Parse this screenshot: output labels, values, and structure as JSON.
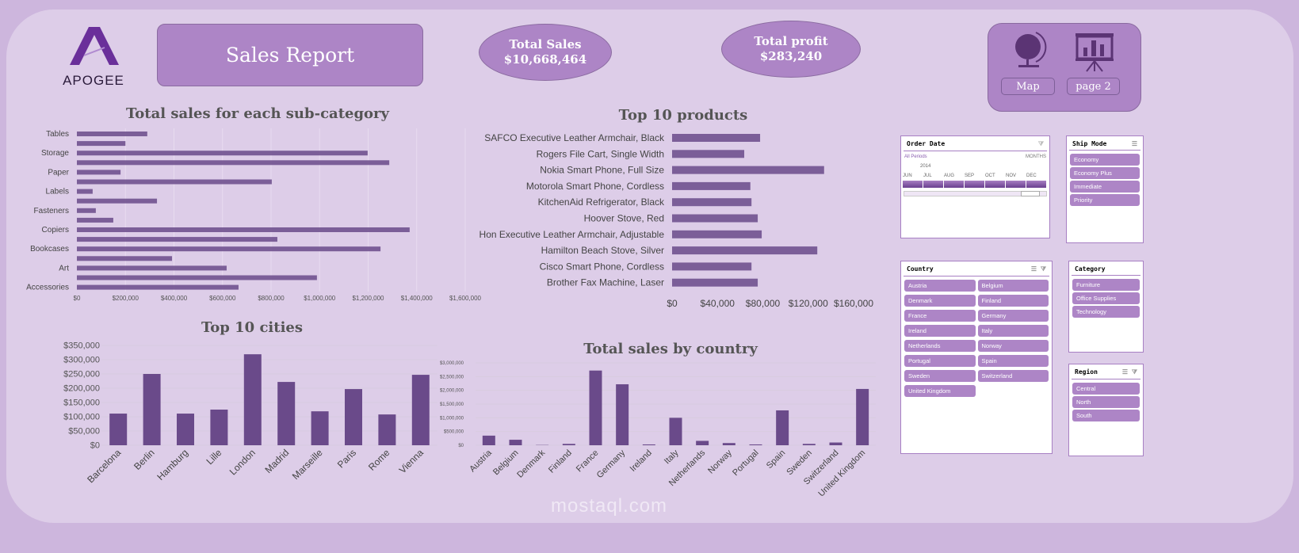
{
  "header": {
    "logo_text": "APOGEE",
    "title": "Sales Report",
    "kpis": [
      {
        "label": "Total Sales",
        "value": "$10,668,464"
      },
      {
        "label": "Total profit",
        "value": "$283,240"
      }
    ],
    "nav": {
      "map_label": "Map",
      "page2_label": "page 2",
      "icons": [
        "globe-icon",
        "presentation-chart-icon"
      ]
    }
  },
  "colors": {
    "bar": "#6a4a8a",
    "slicer": "#ad85c6",
    "panel": "#ddcde8",
    "background": "#cdb6dd"
  },
  "chart_data": [
    {
      "type": "bar",
      "orientation": "horizontal",
      "title": "Total sales for each sub-category",
      "categories": [
        "Tables",
        "",
        "Storage",
        "",
        "Paper",
        "",
        "Labels",
        "",
        "Fasteners",
        "",
        "Copiers",
        "",
        "Bookcases",
        "",
        "Art",
        "",
        "Accessories"
      ],
      "values": [
        290000,
        200000,
        1198000,
        1287000,
        180000,
        803000,
        65000,
        330000,
        78000,
        150000,
        1371000,
        826000,
        1251000,
        392000,
        617000,
        989000,
        666000
      ],
      "xlim": [
        0,
        1600000
      ],
      "ticks": [
        "$0",
        "$200,000",
        "$400,000",
        "$600,000",
        "$800,000",
        "$1,000,000",
        "$1,200,000",
        "$1,400,000",
        "$1,600,000"
      ],
      "grid": true
    },
    {
      "type": "bar",
      "orientation": "horizontal",
      "title": "Top 10 products",
      "categories": [
        "SAFCO Executive Leather Armchair, Black",
        "Rogers File Cart, Single Width",
        "Nokia Smart Phone, Full Size",
        "Motorola Smart Phone, Cordless",
        "KitchenAid Refrigerator, Black",
        "Hoover Stove, Red",
        "Hon Executive Leather Armchair, Adjustable",
        "Hamilton Beach Stove, Silver",
        "Cisco Smart Phone, Cordless",
        "Brother Fax Machine, Laser"
      ],
      "values": [
        77600,
        63600,
        134000,
        69000,
        70000,
        75500,
        79000,
        128000,
        70000,
        75500
      ],
      "xlim": [
        0,
        160000
      ],
      "ticks": [
        "$0",
        "$40,000",
        "$80,000",
        "$120,000",
        "$160,000"
      ],
      "grid": false
    },
    {
      "type": "bar",
      "title": "Top 10 cities",
      "categories": [
        "Barcelona",
        "Berlin",
        "Hamburg",
        "Lille",
        "London",
        "Madrid",
        "Marseille",
        "Paris",
        "Rome",
        "Vienna"
      ],
      "values": [
        111000,
        250000,
        111000,
        125000,
        319000,
        222000,
        119000,
        197000,
        108000,
        247000
      ],
      "ylim": [
        0,
        350000
      ],
      "ticks": [
        "$0",
        "$50,000",
        "$100,000",
        "$150,000",
        "$200,000",
        "$250,000",
        "$300,000",
        "$350,000"
      ],
      "grid": true
    },
    {
      "type": "bar",
      "title": "Total sales by country",
      "categories": [
        "Austria",
        "Belgium",
        "Denmark",
        "Finland",
        "France",
        "Germany",
        "Ireland",
        "Italy",
        "Netherlands",
        "Norway",
        "Portugal",
        "Spain",
        "Sweden",
        "Switzerland",
        "United Kingdom"
      ],
      "values": [
        350000,
        200000,
        10000,
        50000,
        2720000,
        2220000,
        30000,
        1000000,
        160000,
        80000,
        30000,
        1270000,
        50000,
        100000,
        2050000
      ],
      "ylim": [
        0,
        3000000
      ],
      "ticks": [
        "$0",
        "$500,000",
        "$1,000,000",
        "$1,500,000",
        "$2,000,000",
        "$2,500,000",
        "$3,000,000"
      ],
      "grid": true
    }
  ],
  "slicers": {
    "order_date": {
      "title": "Order Date",
      "all_periods": "All Periods",
      "level": "MONTHS",
      "year": "2014",
      "months": [
        "JUN",
        "JUL",
        "AUG",
        "SEP",
        "OCT",
        "NOV",
        "DEC"
      ]
    },
    "ship_mode": {
      "title": "Ship Mode",
      "items": [
        "Economy",
        "Economy Plus",
        "Immediate",
        "Priority"
      ]
    },
    "country": {
      "title": "Country",
      "items": [
        "Austria",
        "Belgium",
        "Denmark",
        "Finland",
        "France",
        "Germany",
        "Ireland",
        "Italy",
        "Netherlands",
        "Norway",
        "Portugal",
        "Spain",
        "Sweden",
        "Switzerland",
        "United Kingdom"
      ]
    },
    "category": {
      "title": "Category",
      "items": [
        "Furniture",
        "Office Supplies",
        "Technology"
      ]
    },
    "region": {
      "title": "Region",
      "items": [
        "Central",
        "North",
        "South"
      ]
    }
  },
  "watermark": "mostaql.com"
}
